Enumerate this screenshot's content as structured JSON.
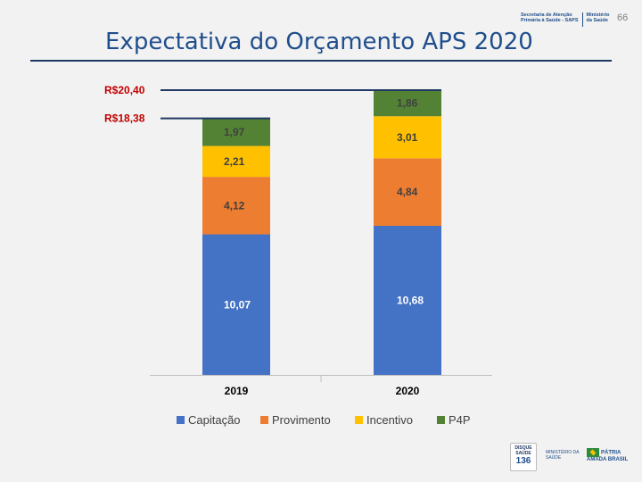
{
  "page": {
    "number": "66",
    "title": "Expectativa do Orçamento APS 2020"
  },
  "header_logo": {
    "line1": "Secretaria de Atenção",
    "line2": "Primária à Saúde - SAPS",
    "line3": "Ministério",
    "line4": "da Saúde"
  },
  "footer": {
    "disque_top": "DISQUE SAÚDE",
    "disque_number": "136",
    "ms_text": "MINISTÉRIO DA SAÚDE",
    "patria_text": "PÁTRIA AMADA BRASIL"
  },
  "chart_data": {
    "type": "bar",
    "stacked": true,
    "categories": [
      "2019",
      "2020"
    ],
    "series": [
      {
        "name": "Capitação",
        "color": "#4472c4",
        "values": [
          10.07,
          10.68
        ],
        "labels": [
          "10,07",
          "10,68"
        ]
      },
      {
        "name": "Provimento",
        "color": "#ed7d31",
        "values": [
          4.12,
          4.84
        ],
        "labels": [
          "4,12",
          "4,84"
        ]
      },
      {
        "name": "Incentivo",
        "color": "#ffc000",
        "values": [
          2.21,
          3.01
        ],
        "labels": [
          "2,21",
          "3,01"
        ]
      },
      {
        "name": "P4P",
        "color": "#548235",
        "values": [
          1.97,
          1.86
        ],
        "labels": [
          "1,97",
          "1,86"
        ]
      }
    ],
    "totals": [
      {
        "category": "2019",
        "value": 18.38,
        "label": "R$18,38",
        "color": "#c00000"
      },
      {
        "category": "2020",
        "value": 20.4,
        "label": "R$20,40",
        "color": "#c00000"
      }
    ],
    "ylim": [
      0,
      20.4
    ],
    "legend": "bottom",
    "grid": false
  }
}
